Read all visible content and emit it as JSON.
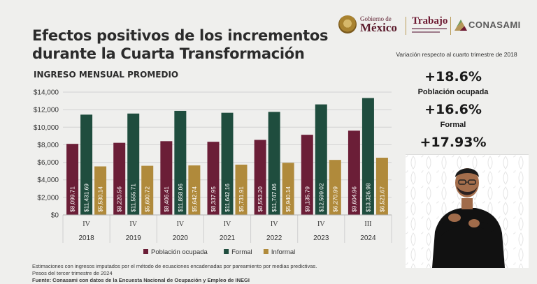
{
  "header": {
    "title_line1": "Efectos positivos de los incrementos",
    "title_line2": "durante la Cuarta Transformación",
    "subtitle": "INGRESO MENSUAL PROMEDIO"
  },
  "logos": {
    "gobierno_de": "Gobierno de",
    "mexico": "México",
    "trabajo": "Trabajo",
    "conasami": "CONASAMI"
  },
  "side_panel": {
    "variation_note": "Variación respecto al cuarto trimestre de 2018",
    "stats": [
      {
        "value": "+18.6%",
        "label": "Población ocupada"
      },
      {
        "value": "+16.6%",
        "label": "Formal"
      },
      {
        "value": "+17.93%",
        "label": ""
      }
    ]
  },
  "chart_data": {
    "type": "bar",
    "title": "INGRESO MENSUAL PROMEDIO",
    "categories": [
      "2018",
      "2019",
      "2020",
      "2021",
      "2022",
      "2023",
      "2024"
    ],
    "quarters": [
      "IV",
      "IV",
      "IV",
      "IV",
      "IV",
      "IV",
      "III"
    ],
    "y_ticks": [
      "$0",
      "$2,000",
      "$4,000",
      "$6,000",
      "$8,000",
      "$10,000",
      "$12,000",
      "$14,000"
    ],
    "ylim": [
      0,
      14000
    ],
    "grid": true,
    "legend_position": "bottom",
    "series": [
      {
        "name": "Población ocupada",
        "color": "#6b1e37",
        "values": [
          8099.71,
          8220.56,
          8406.41,
          8337.95,
          8553.2,
          9135.79,
          9604.96
        ],
        "labels": [
          "$8,099.71",
          "$8,220.56",
          "$8,406.41",
          "$8,337.95",
          "$8,553.20",
          "$9,135.79",
          "$9,604.96"
        ]
      },
      {
        "name": "Formal",
        "color": "#1f4d3e",
        "values": [
          11431.69,
          11555.71,
          11858.06,
          11642.16,
          11747.06,
          12599.02,
          13326.98
        ],
        "labels": [
          "$11,431.69",
          "$11,555.71",
          "$11,858.06",
          "$11,642.16",
          "$11,747.06",
          "$12,599.02",
          "$13,326.98"
        ]
      },
      {
        "name": "Informal",
        "color": "#b08a3b",
        "values": [
          5530.14,
          5600.72,
          5642.74,
          5731.91,
          5940.14,
          6270.99,
          6521.67
        ],
        "labels": [
          "$5,530.14",
          "$5,600.72",
          "$5,642.74",
          "$5,731.91",
          "$5,940.14",
          "$6,270.99",
          "$6,521.67"
        ]
      }
    ]
  },
  "footnotes": {
    "line1": "Estimaciones con ingresos imputados por el método de ecuaciones encadenadas por pareamiento por medias predictivas.",
    "line2": "Pesos del tercer trimestre de 2024",
    "line3": "Fuente: Conasami con datos de la Encuesta Nacional de Ocupación y Empleo de INEGI"
  }
}
